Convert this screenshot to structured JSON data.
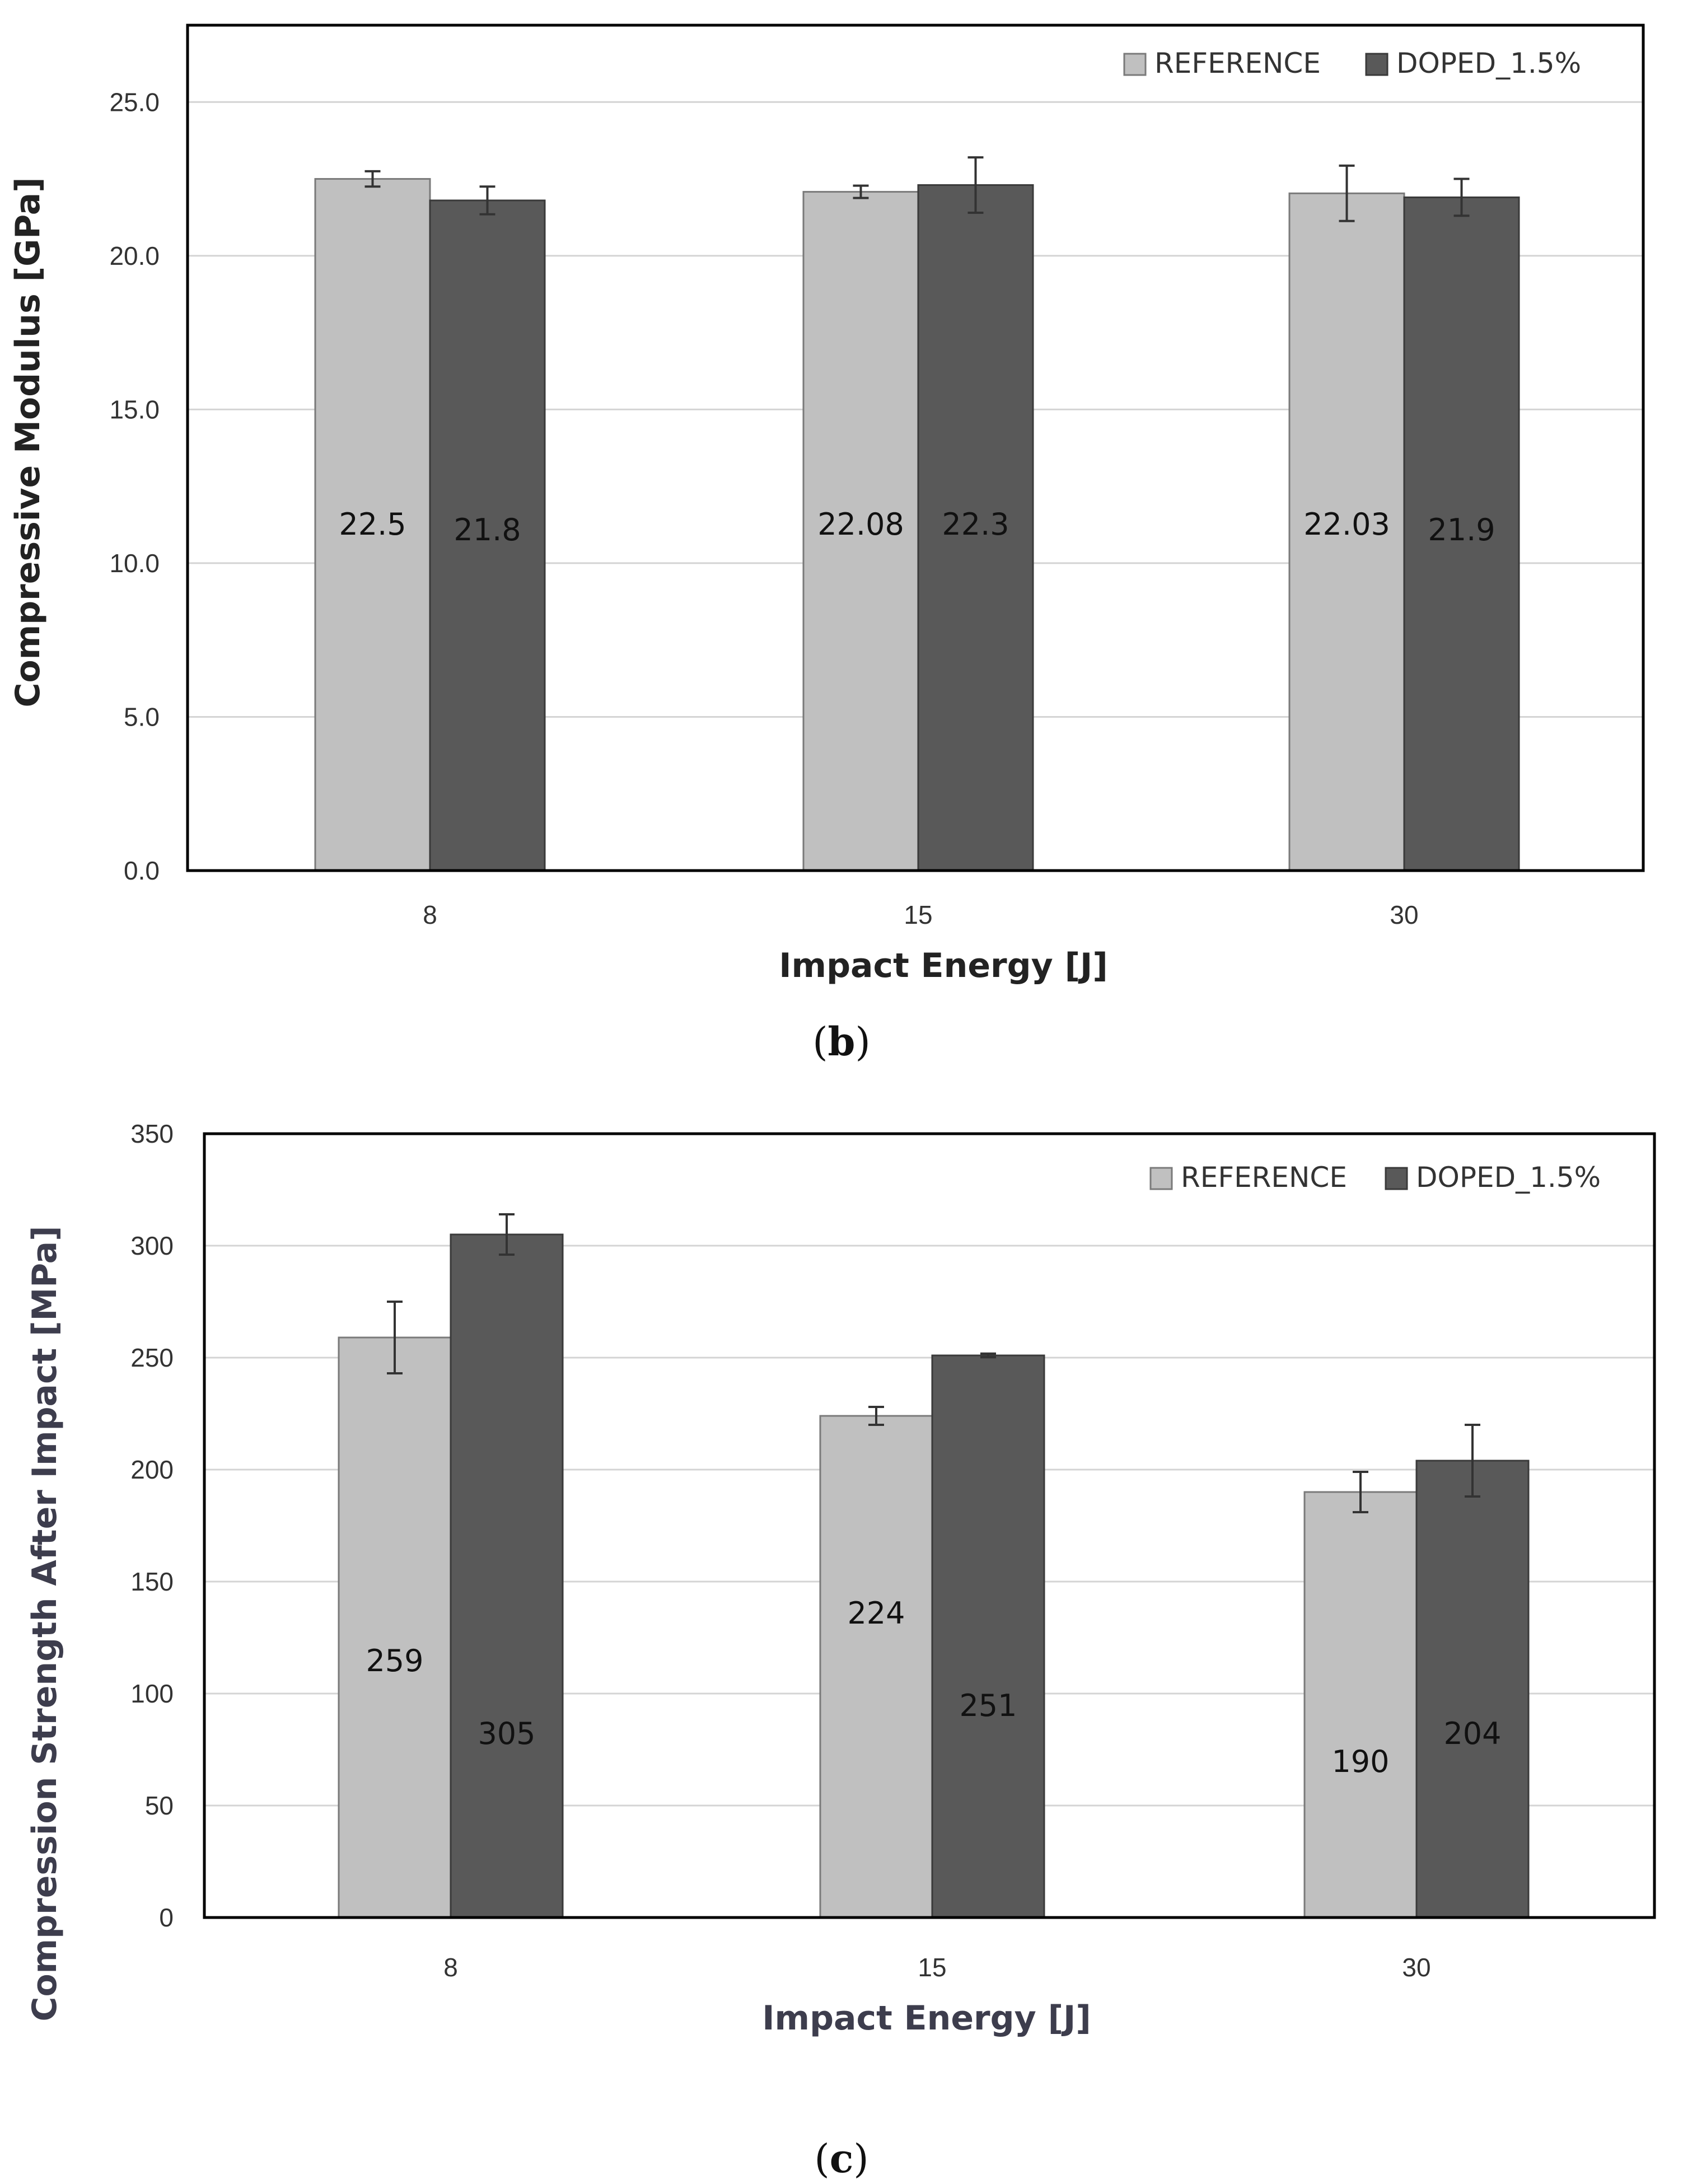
{
  "chart_data": [
    {
      "type": "bar",
      "panel_label": "b",
      "categories": [
        "8",
        "15",
        "30"
      ],
      "series": [
        {
          "name": "REFERENCE",
          "color": "#c0c0c0",
          "values": [
            22.5,
            22.08,
            22.03
          ],
          "errors": [
            0.25,
            0.2,
            0.9
          ],
          "labels": [
            "22.5",
            "22.08",
            "22.03"
          ]
        },
        {
          "name": "DOPED_1.5%",
          "color": "#595959",
          "values": [
            21.8,
            22.3,
            21.9
          ],
          "errors": [
            0.45,
            0.9,
            0.6
          ],
          "labels": [
            "21.8",
            "22.3",
            "21.9"
          ]
        }
      ],
      "ylabel": "Compressive Modulus  [GPa]",
      "xlabel": "Impact Energy [J]",
      "ylim": [
        0,
        27.5
      ],
      "yticks": [
        "0.0",
        "5.0",
        "10.0",
        "15.0",
        "20.0",
        "25.0"
      ],
      "ytick_values": [
        0,
        5,
        10,
        15,
        20,
        25
      ],
      "grid": true,
      "legend": "top-right"
    },
    {
      "type": "bar",
      "panel_label": "c",
      "categories": [
        "8",
        "15",
        "30"
      ],
      "series": [
        {
          "name": "REFERENCE",
          "color": "#c0c0c0",
          "values": [
            259,
            224,
            190
          ],
          "errors": [
            16,
            4,
            9
          ],
          "labels": [
            "259",
            "224",
            "190"
          ]
        },
        {
          "name": "DOPED_1.5%",
          "color": "#595959",
          "values": [
            305,
            251,
            204
          ],
          "errors": [
            9,
            0.8,
            16
          ],
          "labels": [
            "305",
            "251",
            "204"
          ]
        }
      ],
      "ylabel": "Compression Strength After Impact   [MPa]",
      "xlabel": "Impact Energy [J]",
      "ylim": [
        0,
        350
      ],
      "yticks": [
        "0",
        "50",
        "100",
        "150",
        "200",
        "250",
        "300",
        "350"
      ],
      "ytick_values": [
        0,
        50,
        100,
        150,
        200,
        250,
        300,
        350
      ],
      "grid": true,
      "legend": "top-right"
    }
  ]
}
